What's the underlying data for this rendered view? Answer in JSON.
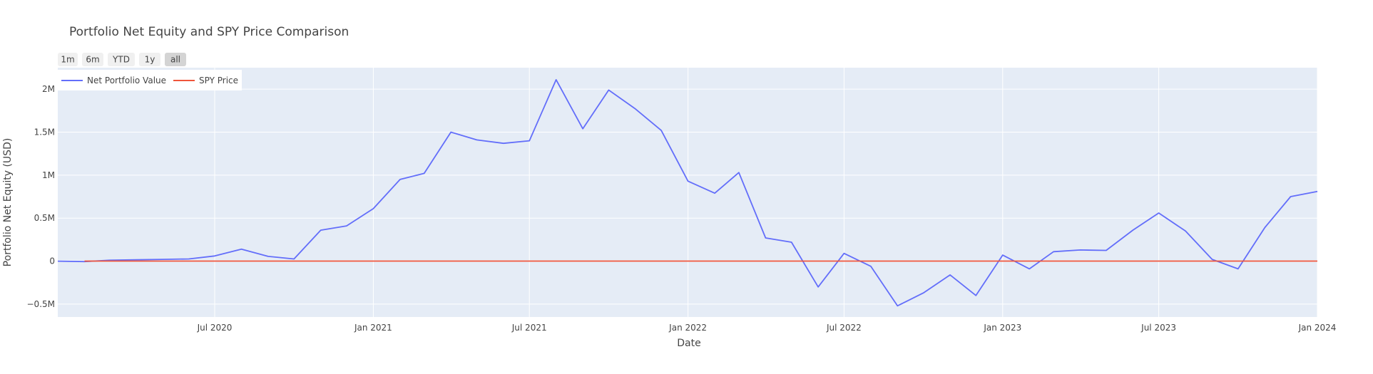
{
  "chart_data": {
    "type": "line",
    "title": "Portfolio Net Equity and SPY Price Comparison",
    "xlabel": "Date",
    "ylabel": "Portfolio Net Equity (USD)",
    "xlim": [
      "2020-01-01",
      "2024-01-01"
    ],
    "ylim": [
      -650000,
      2250000
    ],
    "x_ticks": [
      {
        "date": "2020-07-01",
        "label": "Jul 2020"
      },
      {
        "date": "2021-01-01",
        "label": "Jan 2021"
      },
      {
        "date": "2021-07-01",
        "label": "Jul 2021"
      },
      {
        "date": "2022-01-01",
        "label": "Jan 2022"
      },
      {
        "date": "2022-07-01",
        "label": "Jul 2022"
      },
      {
        "date": "2023-01-01",
        "label": "Jan 2023"
      },
      {
        "date": "2023-07-01",
        "label": "Jul 2023"
      },
      {
        "date": "2024-01-01",
        "label": "Jan 2024"
      }
    ],
    "y_ticks": [
      {
        "value": -500000,
        "label": "−0.5M"
      },
      {
        "value": 0,
        "label": "0"
      },
      {
        "value": 500000,
        "label": "0.5M"
      },
      {
        "value": 1000000,
        "label": "1M"
      },
      {
        "value": 1500000,
        "label": "1.5M"
      },
      {
        "value": 2000000,
        "label": "2M"
      }
    ],
    "grid": true,
    "legend_position": "top-left",
    "range_buttons": [
      {
        "label": "1m",
        "active": false
      },
      {
        "label": "6m",
        "active": false
      },
      {
        "label": "YTD",
        "active": false
      },
      {
        "label": "1y",
        "active": false
      },
      {
        "label": "all",
        "active": true
      }
    ],
    "series": [
      {
        "name": "Net Portfolio Value",
        "color": "#636efa",
        "points": [
          [
            "2020-01-01",
            0
          ],
          [
            "2020-02-01",
            -5000
          ],
          [
            "2020-03-01",
            10000
          ],
          [
            "2020-04-01",
            15000
          ],
          [
            "2020-05-01",
            20000
          ],
          [
            "2020-06-01",
            25000
          ],
          [
            "2020-07-01",
            60000
          ],
          [
            "2020-08-01",
            140000
          ],
          [
            "2020-09-01",
            55000
          ],
          [
            "2020-10-01",
            25000
          ],
          [
            "2020-11-01",
            360000
          ],
          [
            "2020-12-01",
            410000
          ],
          [
            "2021-01-01",
            610000
          ],
          [
            "2021-02-01",
            950000
          ],
          [
            "2021-03-01",
            1020000
          ],
          [
            "2021-04-01",
            1500000
          ],
          [
            "2021-05-01",
            1410000
          ],
          [
            "2021-06-01",
            1370000
          ],
          [
            "2021-07-01",
            1400000
          ],
          [
            "2021-08-01",
            2110000
          ],
          [
            "2021-09-01",
            1540000
          ],
          [
            "2021-10-01",
            1990000
          ],
          [
            "2021-11-01",
            1770000
          ],
          [
            "2021-12-01",
            1520000
          ],
          [
            "2022-01-01",
            930000
          ],
          [
            "2022-02-01",
            790000
          ],
          [
            "2022-03-01",
            1030000
          ],
          [
            "2022-04-01",
            270000
          ],
          [
            "2022-05-01",
            220000
          ],
          [
            "2022-06-01",
            -300000
          ],
          [
            "2022-07-01",
            90000
          ],
          [
            "2022-08-01",
            -60000
          ],
          [
            "2022-09-01",
            -520000
          ],
          [
            "2022-10-01",
            -370000
          ],
          [
            "2022-11-01",
            -160000
          ],
          [
            "2022-12-01",
            -400000
          ],
          [
            "2023-01-01",
            70000
          ],
          [
            "2023-02-01",
            -90000
          ],
          [
            "2023-03-01",
            110000
          ],
          [
            "2023-04-01",
            130000
          ],
          [
            "2023-05-01",
            125000
          ],
          [
            "2023-06-01",
            360000
          ],
          [
            "2023-07-01",
            560000
          ],
          [
            "2023-08-01",
            350000
          ],
          [
            "2023-09-01",
            20000
          ],
          [
            "2023-10-01",
            -90000
          ],
          [
            "2023-11-01",
            390000
          ],
          [
            "2023-12-01",
            750000
          ],
          [
            "2024-01-01",
            810000
          ]
        ]
      },
      {
        "name": "SPY Price",
        "color": "#ef553b",
        "points": [
          [
            "2020-02-01",
            300
          ],
          [
            "2020-07-01",
            320
          ],
          [
            "2021-01-01",
            380
          ],
          [
            "2021-07-01",
            430
          ],
          [
            "2022-01-01",
            450
          ],
          [
            "2022-07-01",
            400
          ],
          [
            "2023-01-01",
            395
          ],
          [
            "2023-07-01",
            450
          ],
          [
            "2024-01-01",
            480
          ]
        ]
      }
    ]
  }
}
